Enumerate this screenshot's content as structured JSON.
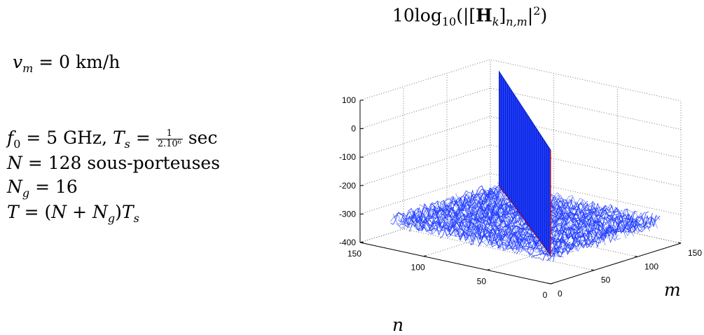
{
  "params": {
    "vm": {
      "var": "v",
      "sub": "m",
      "rest": " = 0 km/h"
    },
    "f0": {
      "var": "f",
      "sub": "0",
      "eq": " = 5 GHz, ",
      "ts_var": "T",
      "ts_sub": "s",
      "ts_eq": " = ",
      "num": "1",
      "den": "2.10⁶",
      "unit": " sec"
    },
    "n_line": {
      "var": "N",
      "rest": " = 128 sous-porteuses"
    },
    "ng_line": {
      "var": "N",
      "sub": "g",
      "rest": " = 16"
    },
    "t_line": {
      "lhs": "T",
      "eq": " = (",
      "n": "N",
      "plus": " + ",
      "ng": "N",
      "ng_sub": "g",
      "close": ")",
      "ts": "T",
      "ts_sub": "s"
    }
  },
  "chart_data": {
    "type": "surface",
    "title": {
      "prefix": "10log",
      "base": "10",
      "open": "(|[",
      "matrix": "H",
      "k": "k",
      "close_bracket": "]",
      "idx": "n,m",
      "close": "|",
      "exp": "2",
      "end": ")"
    },
    "xlabel": "n",
    "ylabel": "m",
    "zlabel": "",
    "xlim": [
      0,
      150
    ],
    "ylim": [
      0,
      150
    ],
    "zlim": [
      -400,
      100
    ],
    "x_ticks": [
      0,
      50,
      100,
      150
    ],
    "y_ticks": [
      0,
      50,
      100,
      150
    ],
    "z_ticks": [
      -400,
      -300,
      -200,
      -100,
      0,
      100
    ],
    "grid": true,
    "color": "#1f3cff",
    "edge_color": "#c00000",
    "n_points": 128,
    "surface": {
      "description_values": "diagonal n = m: approx. 0 to 100 dB; off-diagonal: noise around -300 dB",
      "diagonal_level": 100,
      "floor_level": -300,
      "noise_amplitude": 25
    }
  }
}
